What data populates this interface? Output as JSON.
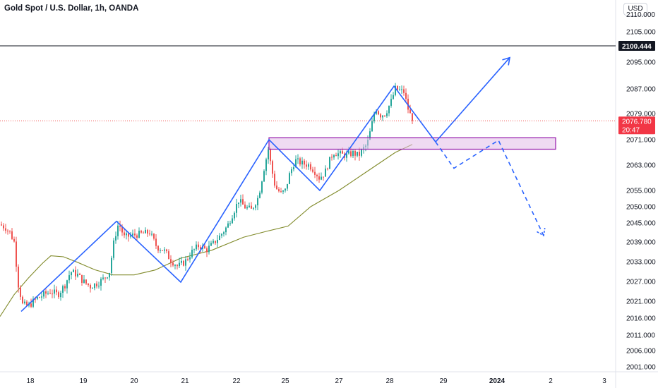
{
  "header": {
    "title": "Gold Spot / U.S. Dollar, 1h, OANDA",
    "currency_button": "USD"
  },
  "colors": {
    "up": "#26a69a",
    "down": "#ef5350",
    "pattern": "#2962ff",
    "ma": "#808a2a",
    "zone_fill": "#e1bee7",
    "zone_border": "#9c27b0",
    "price_badge": "#f23645",
    "level_line": "#131722",
    "dotted_price": "#ef5350"
  },
  "chart_data": {
    "type": "candlestick",
    "y_axis": {
      "ticks": [
        "2105.000",
        "2095.000",
        "2087.000",
        "2079.000",
        "2071.000",
        "2063.000",
        "2055.000",
        "2050.000",
        "2045.000",
        "2039.000",
        "2033.000",
        "2027.000",
        "2021.000",
        "2016.000",
        "2011.000",
        "2006.000",
        "2001.000"
      ],
      "partial_top_label": "2110.000"
    },
    "x_axis": {
      "ticks": [
        {
          "label": "18",
          "bold": false
        },
        {
          "label": "19",
          "bold": false
        },
        {
          "label": "20",
          "bold": false
        },
        {
          "label": "21",
          "bold": false
        },
        {
          "label": "22",
          "bold": false
        },
        {
          "label": "25",
          "bold": false
        },
        {
          "label": "27",
          "bold": false
        },
        {
          "label": "28",
          "bold": false
        },
        {
          "label": "29",
          "bold": false
        },
        {
          "label": "2024",
          "bold": true
        },
        {
          "label": "2",
          "bold": false
        },
        {
          "label": "3",
          "bold": false
        }
      ]
    },
    "level_line": {
      "price": 2100.444,
      "label": "2100.444"
    },
    "last_price": {
      "price": 2076.78,
      "label": "2076.780",
      "countdown": "20:47"
    },
    "zone": {
      "top": 2071.6,
      "bottom": 2068.0
    },
    "price_path": [
      {
        "x": 0,
        "p": 2044.5
      },
      {
        "x": 8,
        "p": 2043.5
      },
      {
        "x": 14,
        "p": 2042.0
      },
      {
        "x": 20,
        "p": 2039.0
      },
      {
        "x": 26,
        "p": 2026.0
      },
      {
        "x": 32,
        "p": 2020.0
      },
      {
        "x": 40,
        "p": 2019.5
      },
      {
        "x": 50,
        "p": 2021.5
      },
      {
        "x": 62,
        "p": 2023.0
      },
      {
        "x": 72,
        "p": 2024.0
      },
      {
        "x": 82,
        "p": 2023.0
      },
      {
        "x": 92,
        "p": 2026.0
      },
      {
        "x": 100,
        "p": 2030.0
      },
      {
        "x": 110,
        "p": 2029.0
      },
      {
        "x": 118,
        "p": 2027.0
      },
      {
        "x": 128,
        "p": 2025.5
      },
      {
        "x": 138,
        "p": 2026.5
      },
      {
        "x": 148,
        "p": 2028.0
      },
      {
        "x": 155,
        "p": 2030.0
      },
      {
        "x": 162,
        "p": 2040.0
      },
      {
        "x": 168,
        "p": 2045.0
      },
      {
        "x": 176,
        "p": 2040.5
      },
      {
        "x": 186,
        "p": 2041.0
      },
      {
        "x": 198,
        "p": 2041.5
      },
      {
        "x": 212,
        "p": 2042.0
      },
      {
        "x": 222,
        "p": 2037.5
      },
      {
        "x": 232,
        "p": 2036.5
      },
      {
        "x": 242,
        "p": 2033.5
      },
      {
        "x": 252,
        "p": 2031.5
      },
      {
        "x": 262,
        "p": 2033.0
      },
      {
        "x": 272,
        "p": 2036.0
      },
      {
        "x": 282,
        "p": 2038.0
      },
      {
        "x": 292,
        "p": 2036.5
      },
      {
        "x": 302,
        "p": 2038.5
      },
      {
        "x": 312,
        "p": 2041.0
      },
      {
        "x": 322,
        "p": 2044.0
      },
      {
        "x": 330,
        "p": 2048.0
      },
      {
        "x": 338,
        "p": 2052.0
      },
      {
        "x": 346,
        "p": 2050.0
      },
      {
        "x": 356,
        "p": 2049.0
      },
      {
        "x": 366,
        "p": 2053.0
      },
      {
        "x": 374,
        "p": 2062.0
      },
      {
        "x": 380,
        "p": 2068.0
      },
      {
        "x": 384,
        "p": 2062.5
      },
      {
        "x": 390,
        "p": 2056.0
      },
      {
        "x": 398,
        "p": 2054.0
      },
      {
        "x": 404,
        "p": 2055.0
      },
      {
        "x": 410,
        "p": 2060.0
      },
      {
        "x": 418,
        "p": 2064.5
      },
      {
        "x": 428,
        "p": 2063.5
      },
      {
        "x": 438,
        "p": 2063.0
      },
      {
        "x": 446,
        "p": 2061.0
      },
      {
        "x": 452,
        "p": 2059.0
      },
      {
        "x": 460,
        "p": 2060.5
      },
      {
        "x": 466,
        "p": 2064.0
      },
      {
        "x": 472,
        "p": 2067.0
      },
      {
        "x": 480,
        "p": 2066.5
      },
      {
        "x": 490,
        "p": 2066.0
      },
      {
        "x": 500,
        "p": 2066.8
      },
      {
        "x": 508,
        "p": 2066.0
      },
      {
        "x": 514,
        "p": 2068.0
      },
      {
        "x": 520,
        "p": 2069.5
      },
      {
        "x": 526,
        "p": 2075.0
      },
      {
        "x": 532,
        "p": 2081.0
      },
      {
        "x": 538,
        "p": 2078.5
      },
      {
        "x": 546,
        "p": 2079.0
      },
      {
        "x": 554,
        "p": 2083.0
      },
      {
        "x": 560,
        "p": 2087.0
      },
      {
        "x": 566,
        "p": 2086.5
      },
      {
        "x": 572,
        "p": 2086.0
      },
      {
        "x": 578,
        "p": 2080.5
      },
      {
        "x": 584,
        "p": 2076.8
      }
    ],
    "moving_average": [
      {
        "x": 0,
        "p": 2016.5
      },
      {
        "x": 20,
        "p": 2023.0
      },
      {
        "x": 40,
        "p": 2028.0
      },
      {
        "x": 60,
        "p": 2032.5
      },
      {
        "x": 72,
        "p": 2034.8
      },
      {
        "x": 90,
        "p": 2034.5
      },
      {
        "x": 110,
        "p": 2032.8
      },
      {
        "x": 135,
        "p": 2030.5
      },
      {
        "x": 160,
        "p": 2029.0
      },
      {
        "x": 190,
        "p": 2029.0
      },
      {
        "x": 220,
        "p": 2030.5
      },
      {
        "x": 255,
        "p": 2034.0
      },
      {
        "x": 300,
        "p": 2036.5
      },
      {
        "x": 345,
        "p": 2040.5
      },
      {
        "x": 380,
        "p": 2042.5
      },
      {
        "x": 408,
        "p": 2044.0
      },
      {
        "x": 440,
        "p": 2050.0
      },
      {
        "x": 480,
        "p": 2055.0
      },
      {
        "x": 520,
        "p": 2061.0
      },
      {
        "x": 560,
        "p": 2067.0
      },
      {
        "x": 584,
        "p": 2069.5
      }
    ],
    "zigzag": [
      {
        "x": 30,
        "p": 2018.0
      },
      {
        "x": 165,
        "p": 2045.5
      },
      {
        "x": 256,
        "p": 2026.8
      },
      {
        "x": 381,
        "p": 2071.0
      },
      {
        "x": 453,
        "p": 2055.0
      },
      {
        "x": 558,
        "p": 2087.8
      },
      {
        "x": 617,
        "p": 2070.3
      }
    ],
    "projection_up": [
      {
        "x": 617,
        "p": 2070.3
      },
      {
        "x": 722,
        "p": 2096.5
      }
    ],
    "projection_down": [
      {
        "x": 617,
        "p": 2070.3
      },
      {
        "x": 643,
        "p": 2062.0
      },
      {
        "x": 706,
        "p": 2070.8
      },
      {
        "x": 770,
        "p": 2041.0
      }
    ]
  }
}
